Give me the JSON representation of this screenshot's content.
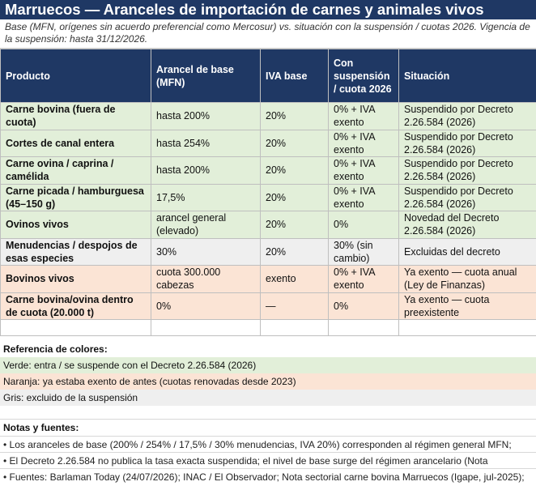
{
  "title": "Marruecos — Aranceles de importación de carnes y animales vivos",
  "subtitle": "Base (MFN, orígenes sin acuerdo preferencial como Mercosur) vs. situación con la suspensión / cuotas 2026. Vigencia de la suspensión: hasta 31/12/2026.",
  "table": {
    "headers": [
      "Producto",
      "Arancel de base (MFN)",
      "IVA base",
      "Con suspensión / cuota 2026",
      "Situación"
    ],
    "rows": [
      {
        "color": "green",
        "cells": [
          "Carne bovina (fuera de cuota)",
          "hasta 200%",
          "20%",
          "0% + IVA exento",
          "Suspendido por Decreto 2.26.584 (2026)"
        ]
      },
      {
        "color": "green",
        "cells": [
          "Cortes de canal entera",
          "hasta 254%",
          "20%",
          "0% + IVA exento",
          "Suspendido por Decreto 2.26.584 (2026)"
        ]
      },
      {
        "color": "green",
        "cells": [
          "Carne ovina / caprina / camélida",
          "hasta 200%",
          "20%",
          "0% + IVA exento",
          "Suspendido por Decreto 2.26.584 (2026)"
        ]
      },
      {
        "color": "green",
        "cells": [
          "Carne picada / hamburguesa (45–150 g)",
          "17,5%",
          "20%",
          "0% + IVA exento",
          "Suspendido por Decreto 2.26.584 (2026)"
        ]
      },
      {
        "color": "green",
        "cells": [
          "Ovinos vivos",
          "arancel general (elevado)",
          "20%",
          "0%",
          "Novedad del Decreto 2.26.584 (2026)"
        ]
      },
      {
        "color": "gray",
        "cells": [
          "Menudencias / despojos de esas especies",
          "30%",
          "20%",
          "30% (sin cambio)",
          "Excluidas del decreto"
        ]
      },
      {
        "color": "orange",
        "cells": [
          "Bovinos vivos",
          "cuota 300.000 cabezas",
          "exento",
          "0% + IVA exento",
          "Ya exento — cuota anual (Ley de Finanzas)"
        ]
      },
      {
        "color": "orange",
        "cells": [
          "Carne bovina/ovina dentro de cuota (20.000 t)",
          "0%",
          "—",
          "0%",
          "Ya exento — cuota preexistente"
        ]
      }
    ]
  },
  "legend": {
    "title": "Referencia de colores:",
    "green": "Verde: entra / se suspende con el Decreto 2.26.584 (2026)",
    "orange": "Naranja: ya estaba exento de antes (cuotas renovadas desde 2023)",
    "gray": "Gris: excluido de la suspensión",
    "colors": {
      "green": "#e2efd9",
      "orange": "#fbe4d5",
      "gray": "#efefef",
      "header": "#1f3864"
    }
  },
  "notes": {
    "title": "Notas y fuentes:",
    "items": [
      "• Los aranceles de base (200% / 254% / 17,5% / 30% menudencias, IVA 20%) corresponden al régimen general MFN;",
      "• El Decreto 2.26.584 no publica la tasa exacta suspendida; el nivel de base surge del régimen arancelario (Nota",
      "• Fuentes: Barlaman Today (24/07/2026); INAC / El Observador; Nota sectorial carne bovina Marruecos (Igape, jul-2025);"
    ]
  }
}
